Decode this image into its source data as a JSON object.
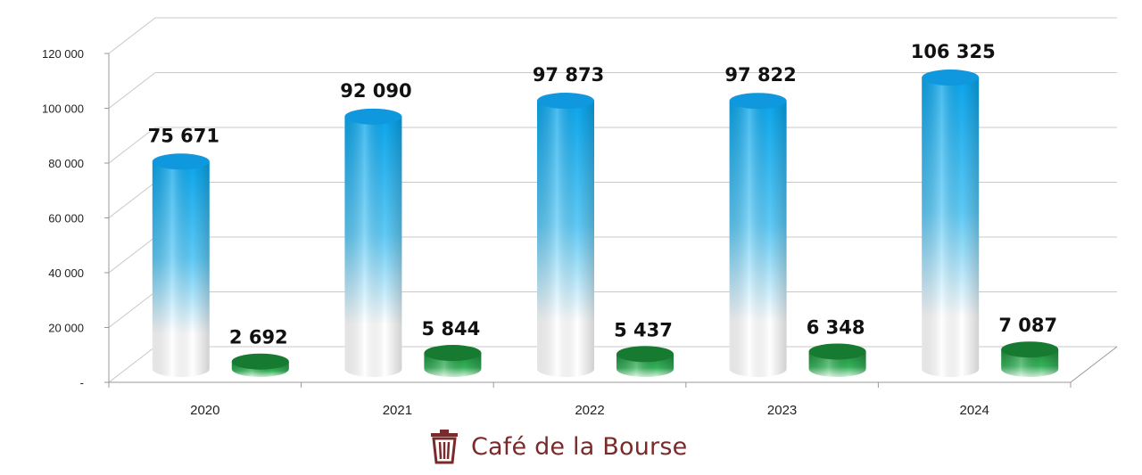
{
  "chart_data": {
    "type": "bar",
    "categories": [
      "2020",
      "2021",
      "2022",
      "2023",
      "2024"
    ],
    "series": [
      {
        "values": [
          75671,
          92090,
          97873,
          97822,
          106325
        ],
        "color": "#1aa7ea"
      },
      {
        "values": [
          2692,
          5844,
          5437,
          6348,
          7087
        ],
        "color": "#1e8a3c"
      }
    ],
    "data_labels": [
      [
        "75 671",
        "92 090",
        "97 873",
        "97 822",
        "106 325"
      ],
      [
        "2 692",
        "5 844",
        "5 437",
        "6 348",
        "7 087"
      ]
    ],
    "y_ticks": [
      {
        "value": 0,
        "label": "-"
      },
      {
        "value": 20000,
        "label": "20 000"
      },
      {
        "value": 40000,
        "label": "40 000"
      },
      {
        "value": 60000,
        "label": "60 000"
      },
      {
        "value": 80000,
        "label": "80 000"
      },
      {
        "value": 100000,
        "label": "100 000"
      },
      {
        "value": 120000,
        "label": "120 000"
      }
    ],
    "ylim": [
      0,
      120000
    ],
    "grid": true,
    "title": "",
    "xlabel": "",
    "ylabel": ""
  },
  "watermark": {
    "text": "Café de la Bourse",
    "icon": "bin-icon",
    "color": "#7a2a2a"
  }
}
